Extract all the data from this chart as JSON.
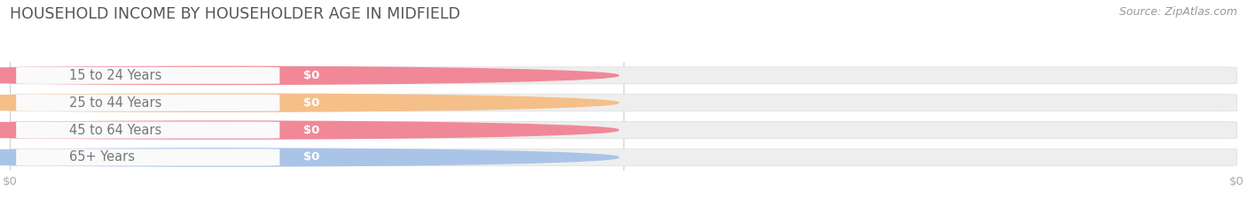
{
  "title": "HOUSEHOLD INCOME BY HOUSEHOLDER AGE IN MIDFIELD",
  "source": "Source: ZipAtlas.com",
  "categories": [
    "15 to 24 Years",
    "25 to 44 Years",
    "45 to 64 Years",
    "65+ Years"
  ],
  "values": [
    0,
    0,
    0,
    0
  ],
  "bar_colors": [
    "#f08898",
    "#f5bf8a",
    "#f08898",
    "#aac4e8"
  ],
  "bar_bg_color": "#eeeeee",
  "label_pill_color": "#fafafa",
  "tick_label_color": "#aaaaaa",
  "title_color": "#555555",
  "source_color": "#999999",
  "background_color": "#ffffff",
  "bar_height": 0.62,
  "label_fontsize": 10.5,
  "title_fontsize": 12.5,
  "source_fontsize": 9,
  "tick_fontsize": 9.5,
  "xticks": [
    0.0,
    0.5,
    1.0
  ],
  "xtick_labels": [
    "$0",
    "",
    "$0"
  ]
}
